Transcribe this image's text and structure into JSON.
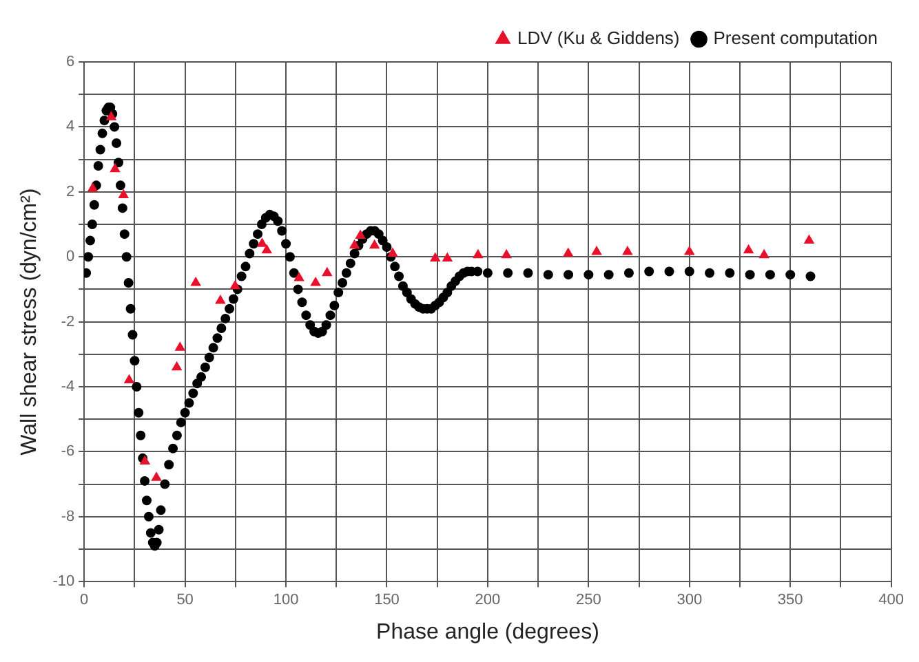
{
  "chart_data": {
    "type": "scatter",
    "xlabel": "Phase angle (degrees)",
    "ylabel": "Wall shear stress (dyn/cm²)",
    "xlim": [
      0,
      400
    ],
    "xticks": [
      0,
      {
        "value": 25,
        "label": null
      },
      50,
      {
        "value": 75,
        "label": null
      },
      100,
      {
        "value": 125,
        "label": null
      },
      150,
      {
        "value": 175,
        "label": null
      },
      200,
      {
        "value": 225,
        "label": null
      },
      250,
      {
        "value": 275,
        "label": null
      },
      300,
      {
        "value": 325,
        "label": null
      },
      350,
      {
        "value": 375,
        "label": null
      },
      400
    ],
    "ylim": [
      -10,
      6
    ],
    "yticks": [
      -10,
      {
        "value": -9,
        "label": null
      },
      -8,
      {
        "value": -7,
        "label": null
      },
      -6,
      {
        "value": -5,
        "label": null
      },
      -4,
      {
        "value": -3,
        "label": null
      },
      -2,
      {
        "value": -1,
        "label": null
      },
      0,
      {
        "value": 1,
        "label": null
      },
      2,
      {
        "value": 3,
        "label": null
      },
      4,
      {
        "value": 5,
        "label": null
      },
      6
    ],
    "grid": true,
    "legend": "top right",
    "series": [
      {
        "name": "Present computation",
        "color": "#000000",
        "marker": "circle",
        "x": [
          1,
          2,
          3,
          4,
          5,
          6,
          7,
          8,
          9,
          10,
          11,
          12,
          13,
          14,
          15,
          16,
          17,
          18,
          19,
          20,
          21,
          22,
          23,
          24,
          25,
          26,
          27,
          28,
          29,
          30,
          31,
          32,
          33,
          34,
          35,
          36,
          37,
          38,
          40,
          42,
          44,
          46,
          48,
          50,
          52,
          54,
          56,
          58,
          60,
          62,
          64,
          66,
          68,
          70,
          72,
          74,
          76,
          78,
          80,
          82,
          84,
          86,
          88,
          90,
          92,
          94,
          96,
          98,
          100,
          102,
          104,
          106,
          108,
          110,
          112,
          114,
          116,
          118,
          120,
          122,
          124,
          126,
          128,
          130,
          132,
          134,
          136,
          138,
          140,
          142,
          144,
          146,
          148,
          150,
          152,
          154,
          156,
          158,
          160,
          162,
          164,
          166,
          168,
          170,
          172,
          174,
          176,
          178,
          180,
          182,
          184,
          186,
          188,
          190,
          192,
          195,
          200,
          210,
          220,
          230,
          240,
          250,
          260,
          270,
          280,
          290,
          300,
          310,
          320,
          330,
          340,
          350,
          360
        ],
        "values": [
          -0.5,
          0,
          0.5,
          1.0,
          1.6,
          2.2,
          2.8,
          3.3,
          3.8,
          4.2,
          4.5,
          4.6,
          4.6,
          4.4,
          4.0,
          3.5,
          2.9,
          2.2,
          1.5,
          0.7,
          0,
          -0.8,
          -1.6,
          -2.4,
          -3.2,
          -4.0,
          -4.8,
          -5.5,
          -6.2,
          -6.9,
          -7.5,
          -8.0,
          -8.5,
          -8.8,
          -8.9,
          -8.8,
          -8.4,
          -7.8,
          -7.0,
          -6.4,
          -5.9,
          -5.5,
          -5.1,
          -4.8,
          -4.5,
          -4.2,
          -3.9,
          -3.7,
          -3.4,
          -3.1,
          -2.8,
          -2.5,
          -2.2,
          -1.9,
          -1.6,
          -1.3,
          -1.0,
          -0.6,
          -0.3,
          0.1,
          0.4,
          0.7,
          1.0,
          1.2,
          1.3,
          1.25,
          1.1,
          0.8,
          0.4,
          0.0,
          -0.5,
          -1.0,
          -1.4,
          -1.8,
          -2.1,
          -2.3,
          -2.35,
          -2.3,
          -2.1,
          -1.8,
          -1.5,
          -1.1,
          -0.8,
          -0.5,
          -0.2,
          0.1,
          0.35,
          0.55,
          0.7,
          0.8,
          0.8,
          0.7,
          0.5,
          0.3,
          0.0,
          -0.3,
          -0.6,
          -0.9,
          -1.1,
          -1.3,
          -1.45,
          -1.55,
          -1.6,
          -1.6,
          -1.6,
          -1.5,
          -1.4,
          -1.25,
          -1.1,
          -0.9,
          -0.75,
          -0.6,
          -0.5,
          -0.45,
          -0.45,
          -0.45,
          -0.5,
          -0.5,
          -0.5,
          -0.55,
          -0.55,
          -0.55,
          -0.55,
          -0.5,
          -0.45,
          -0.45,
          -0.45,
          -0.5,
          -0.5,
          -0.55,
          -0.55,
          -0.55,
          -0.6
        ]
      },
      {
        "name": "LDV (Ku & Giddens)",
        "color": "#e8102a",
        "marker": "triangle",
        "x": [
          4.2,
          13.4,
          15.3,
          19.5,
          22.3,
          30.1,
          35.8,
          45.9,
          47.5,
          55.3,
          67.5,
          74.8,
          88.2,
          90.5,
          106.5,
          114.7,
          120.4,
          134,
          136.9,
          143.9,
          152.9,
          174,
          180,
          195.2,
          209.3,
          239.9,
          254,
          269.3,
          300,
          329.3,
          337,
          359.3
        ],
        "values": [
          2.1,
          4.3,
          2.7,
          1.9,
          -3.8,
          -6.3,
          -6.8,
          -3.4,
          -2.8,
          -0.8,
          -1.35,
          -0.9,
          0.4,
          0.2,
          -0.65,
          -0.8,
          -0.5,
          0.35,
          0.65,
          0.35,
          0.1,
          -0.05,
          -0.05,
          0.05,
          0.05,
          0.1,
          0.15,
          0.15,
          0.15,
          0.2,
          0.05,
          0.5
        ]
      }
    ]
  }
}
